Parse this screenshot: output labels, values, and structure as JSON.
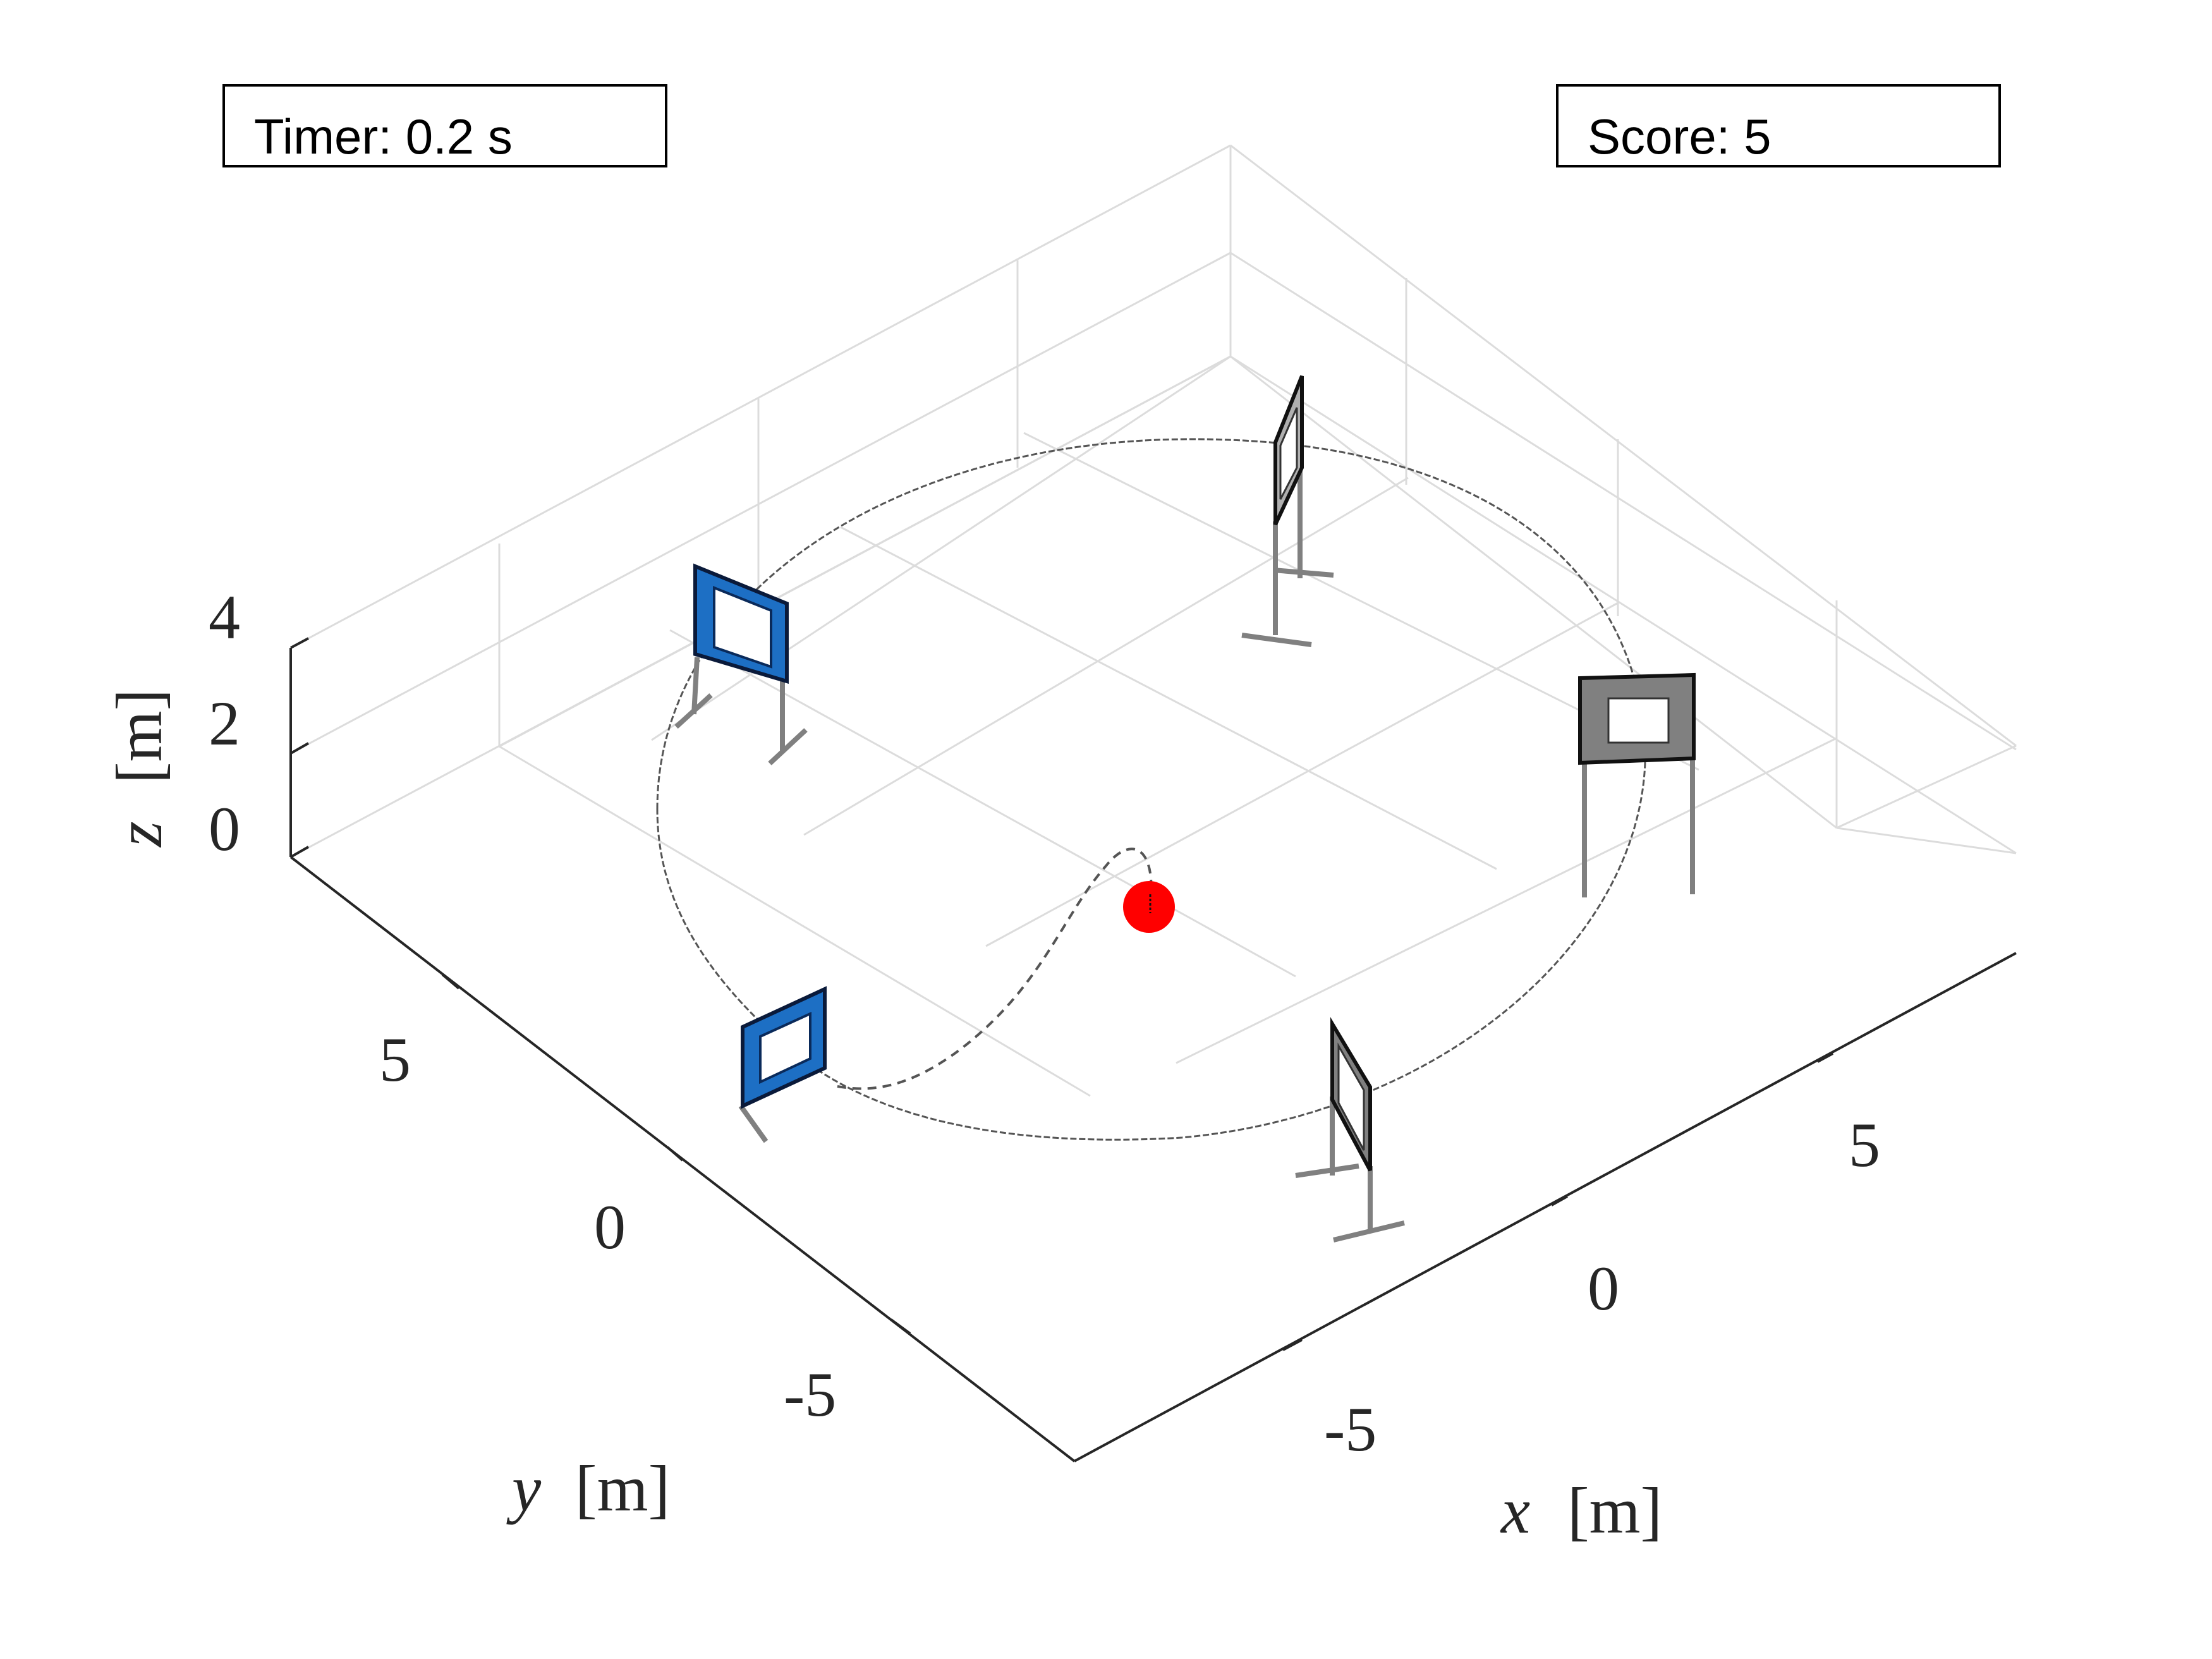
{
  "hud": {
    "timer_text": "Timer: 0.2 s",
    "score_text": "Score: 5"
  },
  "axes": {
    "x_label_var": "x",
    "x_label_unit": "[m]",
    "y_label_var": "y",
    "y_label_unit": "[m]",
    "z_label_var": "z",
    "z_label_unit": "[m]",
    "x_ticks": [
      "-5",
      "0",
      "5"
    ],
    "y_ticks": [
      "-5",
      "0",
      "5"
    ],
    "z_ticks": [
      "0",
      "2",
      "4"
    ]
  },
  "colors": {
    "gate_blue": "#1d6fc4",
    "gate_gray": "#808080",
    "drone": "#ff0000",
    "grid": "#dcdcdc",
    "axis": "#262626",
    "trajectory": "#555555"
  },
  "scene": {
    "gate_count": 5,
    "gate_types": [
      "blue-checkered-gate",
      "blue-checkered-gate",
      "thin-gray-gate",
      "gray-square-gate",
      "thin-gray-gate"
    ],
    "drone": "red-sphere"
  }
}
